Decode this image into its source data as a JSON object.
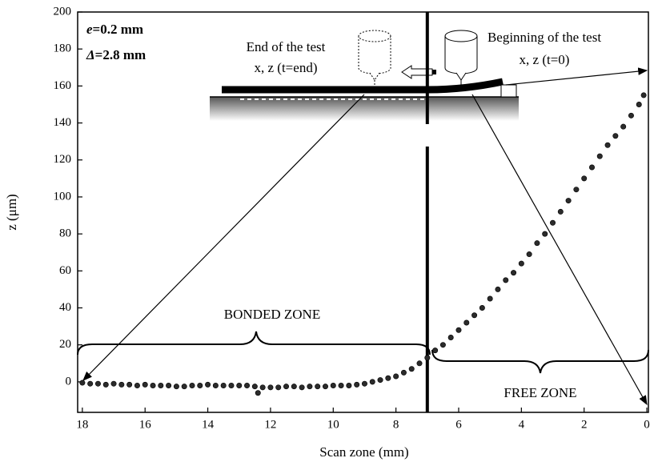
{
  "chart_data": {
    "type": "scatter",
    "x_label": "Scan zone (mm)",
    "y_label": "z (μm)",
    "x": [
      18,
      17.75,
      17.5,
      17.25,
      17,
      16.75,
      16.5,
      16.25,
      16,
      15.75,
      15.5,
      15.25,
      15,
      14.75,
      14.5,
      14.25,
      14,
      13.75,
      13.5,
      13.25,
      13,
      12.75,
      12.5,
      12.4,
      12.25,
      12,
      11.75,
      11.5,
      11.25,
      11,
      10.75,
      10.5,
      10.25,
      10,
      9.75,
      9.5,
      9.25,
      9,
      8.75,
      8.5,
      8.25,
      8,
      7.75,
      7.5,
      7.25,
      7,
      6.75,
      6.5,
      6.25,
      6,
      5.75,
      5.5,
      5.25,
      5,
      4.75,
      4.5,
      4.25,
      4,
      3.75,
      3.5,
      3.25,
      3,
      2.75,
      2.5,
      2.25,
      2,
      1.75,
      1.5,
      1.25,
      1,
      0.75,
      0.5,
      0.25,
      0.1
    ],
    "values": [
      -0.5,
      -1,
      -1,
      -1.5,
      -1,
      -1.5,
      -1.5,
      -2,
      -1.5,
      -2,
      -2,
      -2,
      -2.5,
      -2.5,
      -2,
      -2,
      -1.5,
      -2,
      -2,
      -2,
      -2,
      -2,
      -2.5,
      -6,
      -3,
      -3,
      -3,
      -2.5,
      -2.5,
      -3,
      -2.5,
      -2.5,
      -2.5,
      -2,
      -2,
      -2,
      -1.5,
      -1,
      0,
      1,
      2,
      3,
      5,
      7,
      10,
      13,
      17,
      20,
      24,
      28,
      32,
      36,
      40,
      45,
      50,
      55,
      59,
      64,
      69,
      75,
      80,
      86,
      92,
      98,
      104,
      110,
      116,
      122,
      128,
      133,
      138,
      144,
      150,
      155
    ],
    "color": "#2b2b2b",
    "xlim": [
      18.15,
      -0.05
    ],
    "xticks": [
      18,
      16,
      14,
      12,
      10,
      8,
      6,
      4,
      2,
      0
    ],
    "ylim": [
      -16.5,
      200
    ],
    "yticks": [
      0,
      20,
      40,
      60,
      80,
      100,
      120,
      140,
      160,
      180,
      200
    ],
    "divider_x": 7,
    "annotations": {
      "thickness": {
        "symbol": "e",
        "text": "=0.2 mm"
      },
      "displacement": {
        "symbol": "Δ",
        "text": "=2.8 mm"
      },
      "end_title": "End of the test",
      "end_coords": "x, z (t=end)",
      "begin_title": "Beginning of the test",
      "begin_coords": "x, z (t=0)",
      "bonded": "BONDED ZONE",
      "free": "FREE ZONE"
    }
  }
}
